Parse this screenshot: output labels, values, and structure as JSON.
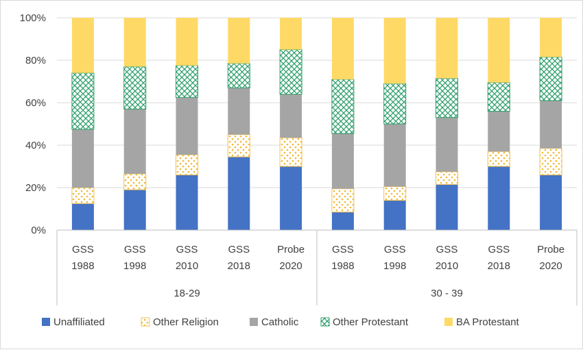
{
  "chart_data": {
    "type": "bar",
    "stacked": true,
    "title": "",
    "ylabel": "",
    "xlabel": "",
    "ylim": [
      0,
      100
    ],
    "yticks": [
      0,
      20,
      40,
      60,
      80,
      100
    ],
    "ytick_labels": [
      "0%",
      "20%",
      "40%",
      "60%",
      "80%",
      "100%"
    ],
    "groups": [
      {
        "label": "18-29",
        "categories": [
          [
            "GSS",
            "1988"
          ],
          [
            "GSS",
            "1998"
          ],
          [
            "GSS",
            "2010"
          ],
          [
            "GSS",
            "2018"
          ],
          [
            "Probe",
            "2020"
          ]
        ]
      },
      {
        "label": "30 - 39",
        "categories": [
          [
            "GSS",
            "1988"
          ],
          [
            "GSS",
            "1998"
          ],
          [
            "GSS",
            "2010"
          ],
          [
            "GSS",
            "2018"
          ],
          [
            "Probe",
            "2020"
          ]
        ]
      }
    ],
    "series": [
      {
        "name": "Unaffiliated",
        "color": "#4472C4",
        "pattern": "solid",
        "values": [
          12.5,
          19,
          26,
          34.5,
          30,
          8.5,
          14,
          21.5,
          30,
          26
        ]
      },
      {
        "name": "Other Religion",
        "color": "#F2C14E",
        "pattern": "dots",
        "values": [
          7.5,
          7.5,
          9.5,
          10.5,
          13.5,
          11,
          6.5,
          6,
          7,
          12.5
        ]
      },
      {
        "name": "Catholic",
        "color": "#A5A5A5",
        "pattern": "solid",
        "values": [
          27.5,
          30.5,
          27,
          22,
          20.5,
          26,
          29.5,
          25.5,
          19,
          22.5
        ]
      },
      {
        "name": "Other Protestant",
        "color": "#2E9E6B",
        "pattern": "crosshatch",
        "values": [
          26.5,
          20,
          15,
          11.5,
          21,
          25.5,
          19,
          18.5,
          13.5,
          20.5
        ]
      },
      {
        "name": "BA Protestant",
        "color": "#FFD966",
        "pattern": "solid",
        "values": [
          26,
          23,
          22.5,
          21.5,
          15,
          29,
          31,
          28.5,
          30.5,
          18.5
        ]
      }
    ],
    "legend_position": "bottom"
  }
}
